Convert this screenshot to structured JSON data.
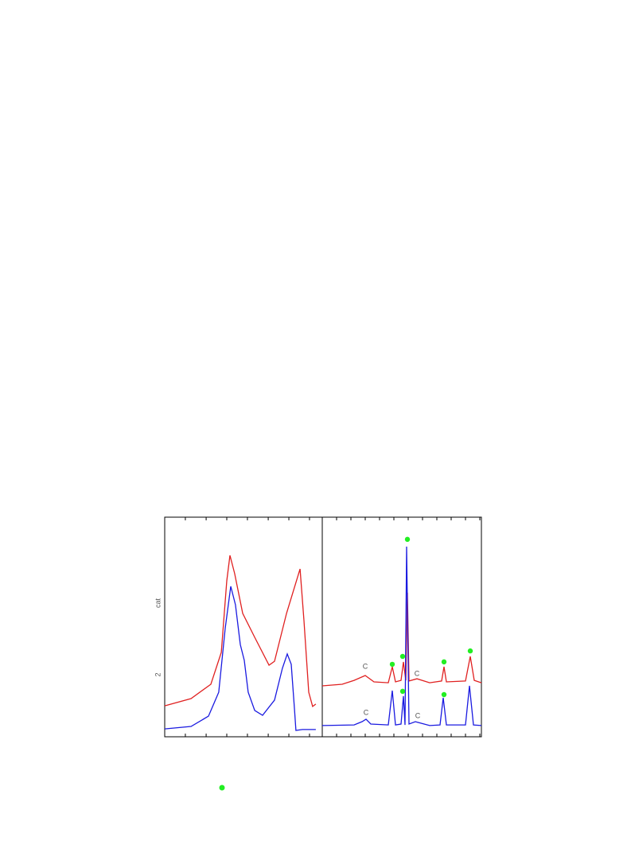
{
  "chart_data": [
    {
      "type": "line",
      "ylabel_parts": [
        "cat",
        "2"
      ],
      "xlim": [
        0,
        100
      ],
      "ylim": [
        0,
        100
      ],
      "xticks": [
        13.1,
        26.3,
        39.4,
        52.5,
        65.7,
        78.8,
        91.9
      ],
      "series": [
        {
          "color": "#e02020",
          "x": [
            0,
            16.7,
            29.3,
            35.9,
            39.4,
            41.4,
            44.4,
            49.5,
            57.1,
            66.2,
            69.7,
            77.3,
            85.9,
            88.4,
            91.4,
            93.9,
            95.9
          ],
          "values": [
            14.1,
            17.4,
            23.9,
            38.4,
            71.0,
            82.6,
            74.3,
            56.2,
            45.3,
            32.6,
            34.4,
            56.2,
            76.4,
            52.9,
            20.3,
            13.8,
            14.9
          ]
        },
        {
          "color": "#1a1ae0",
          "x": [
            0,
            16.7,
            27.8,
            34.3,
            38.4,
            41.9,
            44.9,
            48.0,
            50.5,
            53.0,
            57.1,
            62.1,
            69.7,
            74.7,
            77.8,
            80.3,
            82.3,
            83.3,
            87.4,
            95.9
          ],
          "values": [
            3.6,
            4.7,
            9.4,
            20.3,
            49.3,
            68.5,
            60.1,
            42.0,
            34.8,
            20.3,
            12.0,
            9.8,
            16.7,
            31.2,
            37.7,
            33.0,
            13.0,
            2.9,
            3.3,
            3.3
          ]
        }
      ]
    },
    {
      "type": "line",
      "xlim": [
        0,
        100
      ],
      "ylim": [
        0,
        100
      ],
      "xticks": [
        9,
        18,
        27,
        36,
        45,
        54,
        63,
        72,
        81,
        90,
        99
      ],
      "series": [
        {
          "color": "#e02020",
          "x": [
            0,
            12.5,
            20,
            27,
            32.5,
            41.5,
            44,
            46,
            49.5,
            51,
            52.5,
            53.5,
            54.5,
            59.5,
            67.5,
            75,
            76.5,
            78,
            90,
            93,
            95.5,
            100
          ],
          "values": [
            23.2,
            23.9,
            25.7,
            27.9,
            25.0,
            24.6,
            31.9,
            25.0,
            25.7,
            34.1,
            25.7,
            65.6,
            25.4,
            26.4,
            24.6,
            25.4,
            31.9,
            25.0,
            25.4,
            36.6,
            25.7,
            24.6
          ]
        },
        {
          "color": "#1a1ae0",
          "x": [
            0,
            20,
            25,
            27.5,
            30.5,
            41.5,
            44,
            46,
            49.5,
            51,
            52,
            53,
            54.5,
            58.5,
            60.5,
            67.5,
            74,
            76,
            78,
            90,
            92.5,
            95,
            100
          ],
          "values": [
            5.1,
            5.4,
            6.9,
            8.0,
            5.8,
            5.4,
            21.0,
            5.4,
            5.8,
            18.5,
            5.4,
            86.6,
            5.8,
            6.9,
            6.5,
            5.1,
            5.4,
            17.8,
            5.4,
            5.4,
            23.2,
            5.4,
            5.1
          ]
        }
      ],
      "markers": {
        "color": "#22ee22",
        "x": [
          53.5,
          44,
          50.5,
          76.5,
          93,
          50.5,
          76.5
        ],
        "y": [
          89.9,
          33.0,
          36.6,
          34.1,
          39.1,
          20.7,
          19.2
        ]
      },
      "annotations": [
        {
          "text": "C",
          "x": 27,
          "y": 31.9
        },
        {
          "text": "C",
          "x": 59.5,
          "y": 28.6
        },
        {
          "text": "C",
          "x": 27.5,
          "y": 10.9
        },
        {
          "text": "C",
          "x": 60,
          "y": 9.4
        }
      ]
    }
  ]
}
